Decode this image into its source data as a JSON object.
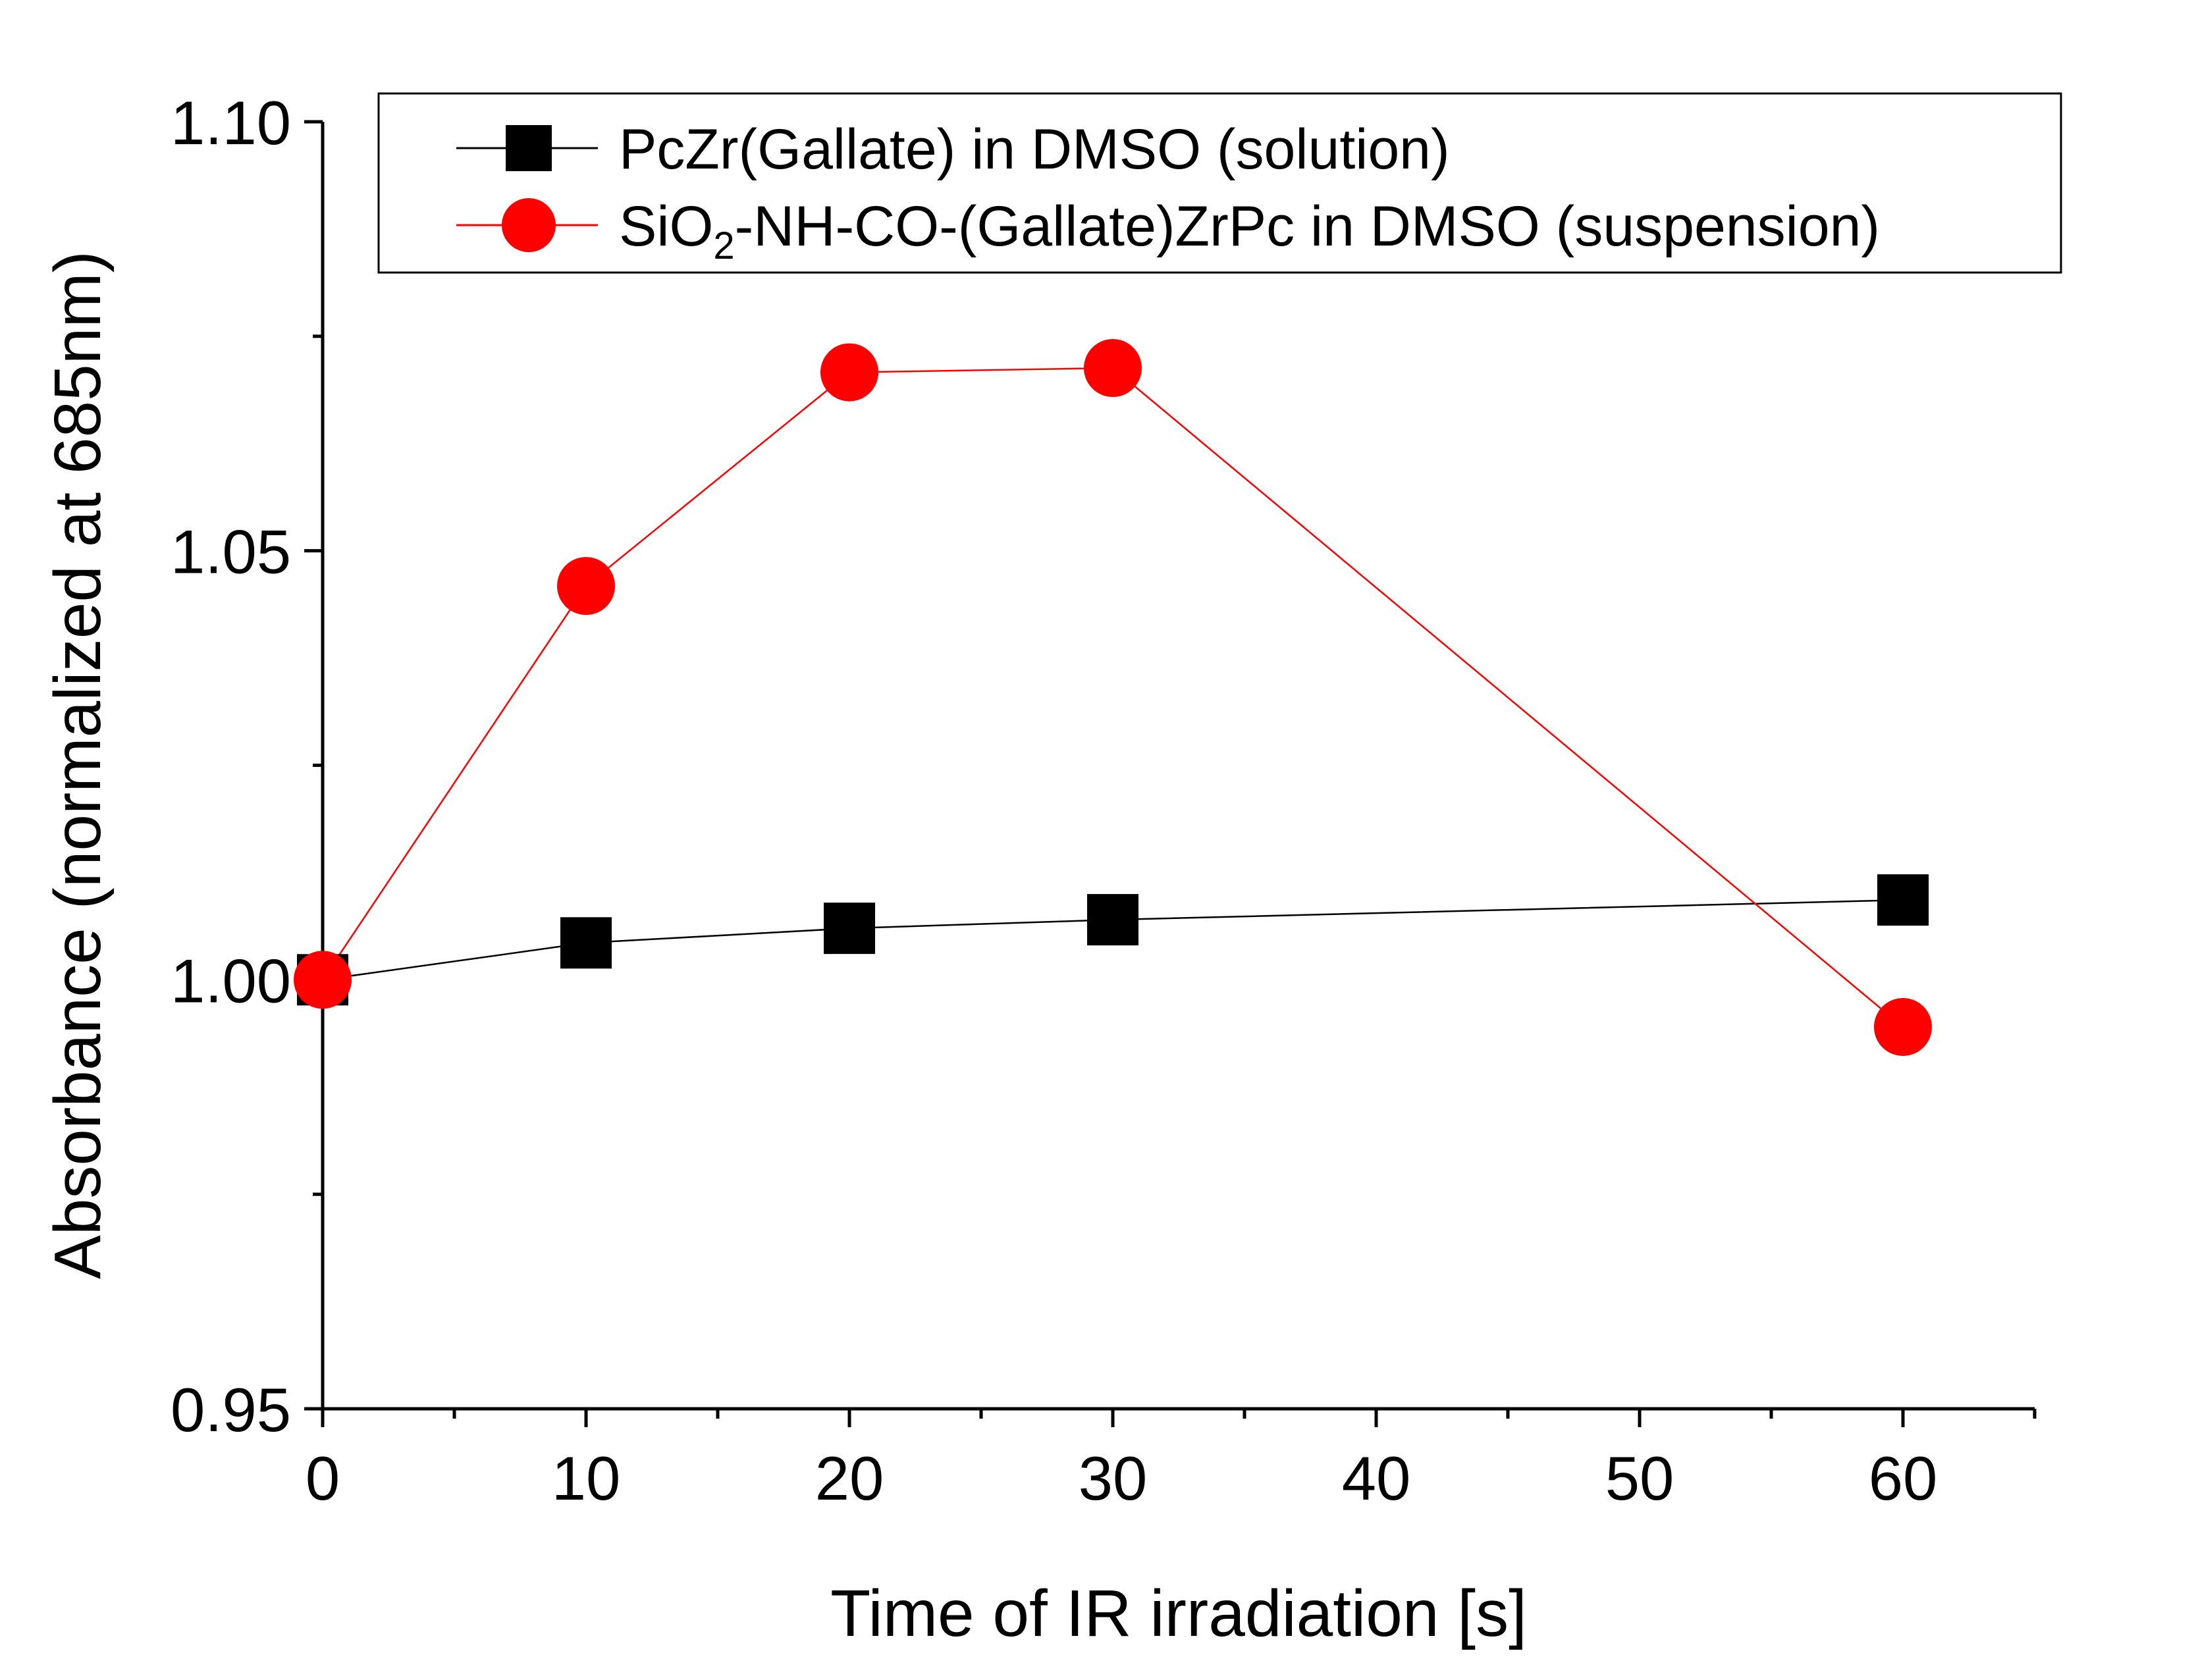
{
  "chart_data": {
    "type": "line",
    "title": "",
    "xlabel": "Time of IR irradiation [s]",
    "ylabel": "Absorbance (normalized at 685nm)",
    "xlim": [
      -1,
      65
    ],
    "ylim": [
      0.95,
      1.1
    ],
    "x_major_ticks": [
      0,
      10,
      20,
      30,
      40,
      50,
      60
    ],
    "x_tick_labels": [
      "0",
      "10",
      "20",
      "30",
      "40",
      "50",
      "60"
    ],
    "x_minor_ticks": [
      5,
      15,
      25,
      35,
      45,
      55,
      65
    ],
    "y_major_ticks": [
      0.95,
      1.0,
      1.05,
      1.1
    ],
    "y_tick_labels": [
      "0.95",
      "1.00",
      "1.05",
      "1.10"
    ],
    "y_minor_ticks": [
      0.975,
      1.025,
      1.075
    ],
    "grid": false,
    "legend_position": "top-right",
    "series": [
      {
        "name": "PcZr(Gallate) in DMSO (solution)",
        "legend_parts": [
          "PcZr(Gallate) in DMSO (solution)"
        ],
        "marker": "square",
        "color": "#000000",
        "x": [
          0,
          10,
          20,
          30,
          60
        ],
        "y": [
          1.0,
          1.0043,
          1.006,
          1.007,
          1.0093
        ]
      },
      {
        "name": "SiO2-NH-CO-(Gallate)ZrPc in DMSO (suspension)",
        "legend_parts": [
          "SiO",
          "2",
          "-NH-CO-(Gallate)ZrPc in DMSO (suspension)"
        ],
        "marker": "circle",
        "color": "#ff0000",
        "x": [
          0,
          10,
          20,
          30,
          60
        ],
        "y": [
          1.0,
          1.0459,
          1.0708,
          1.0713,
          0.9945
        ]
      }
    ]
  }
}
